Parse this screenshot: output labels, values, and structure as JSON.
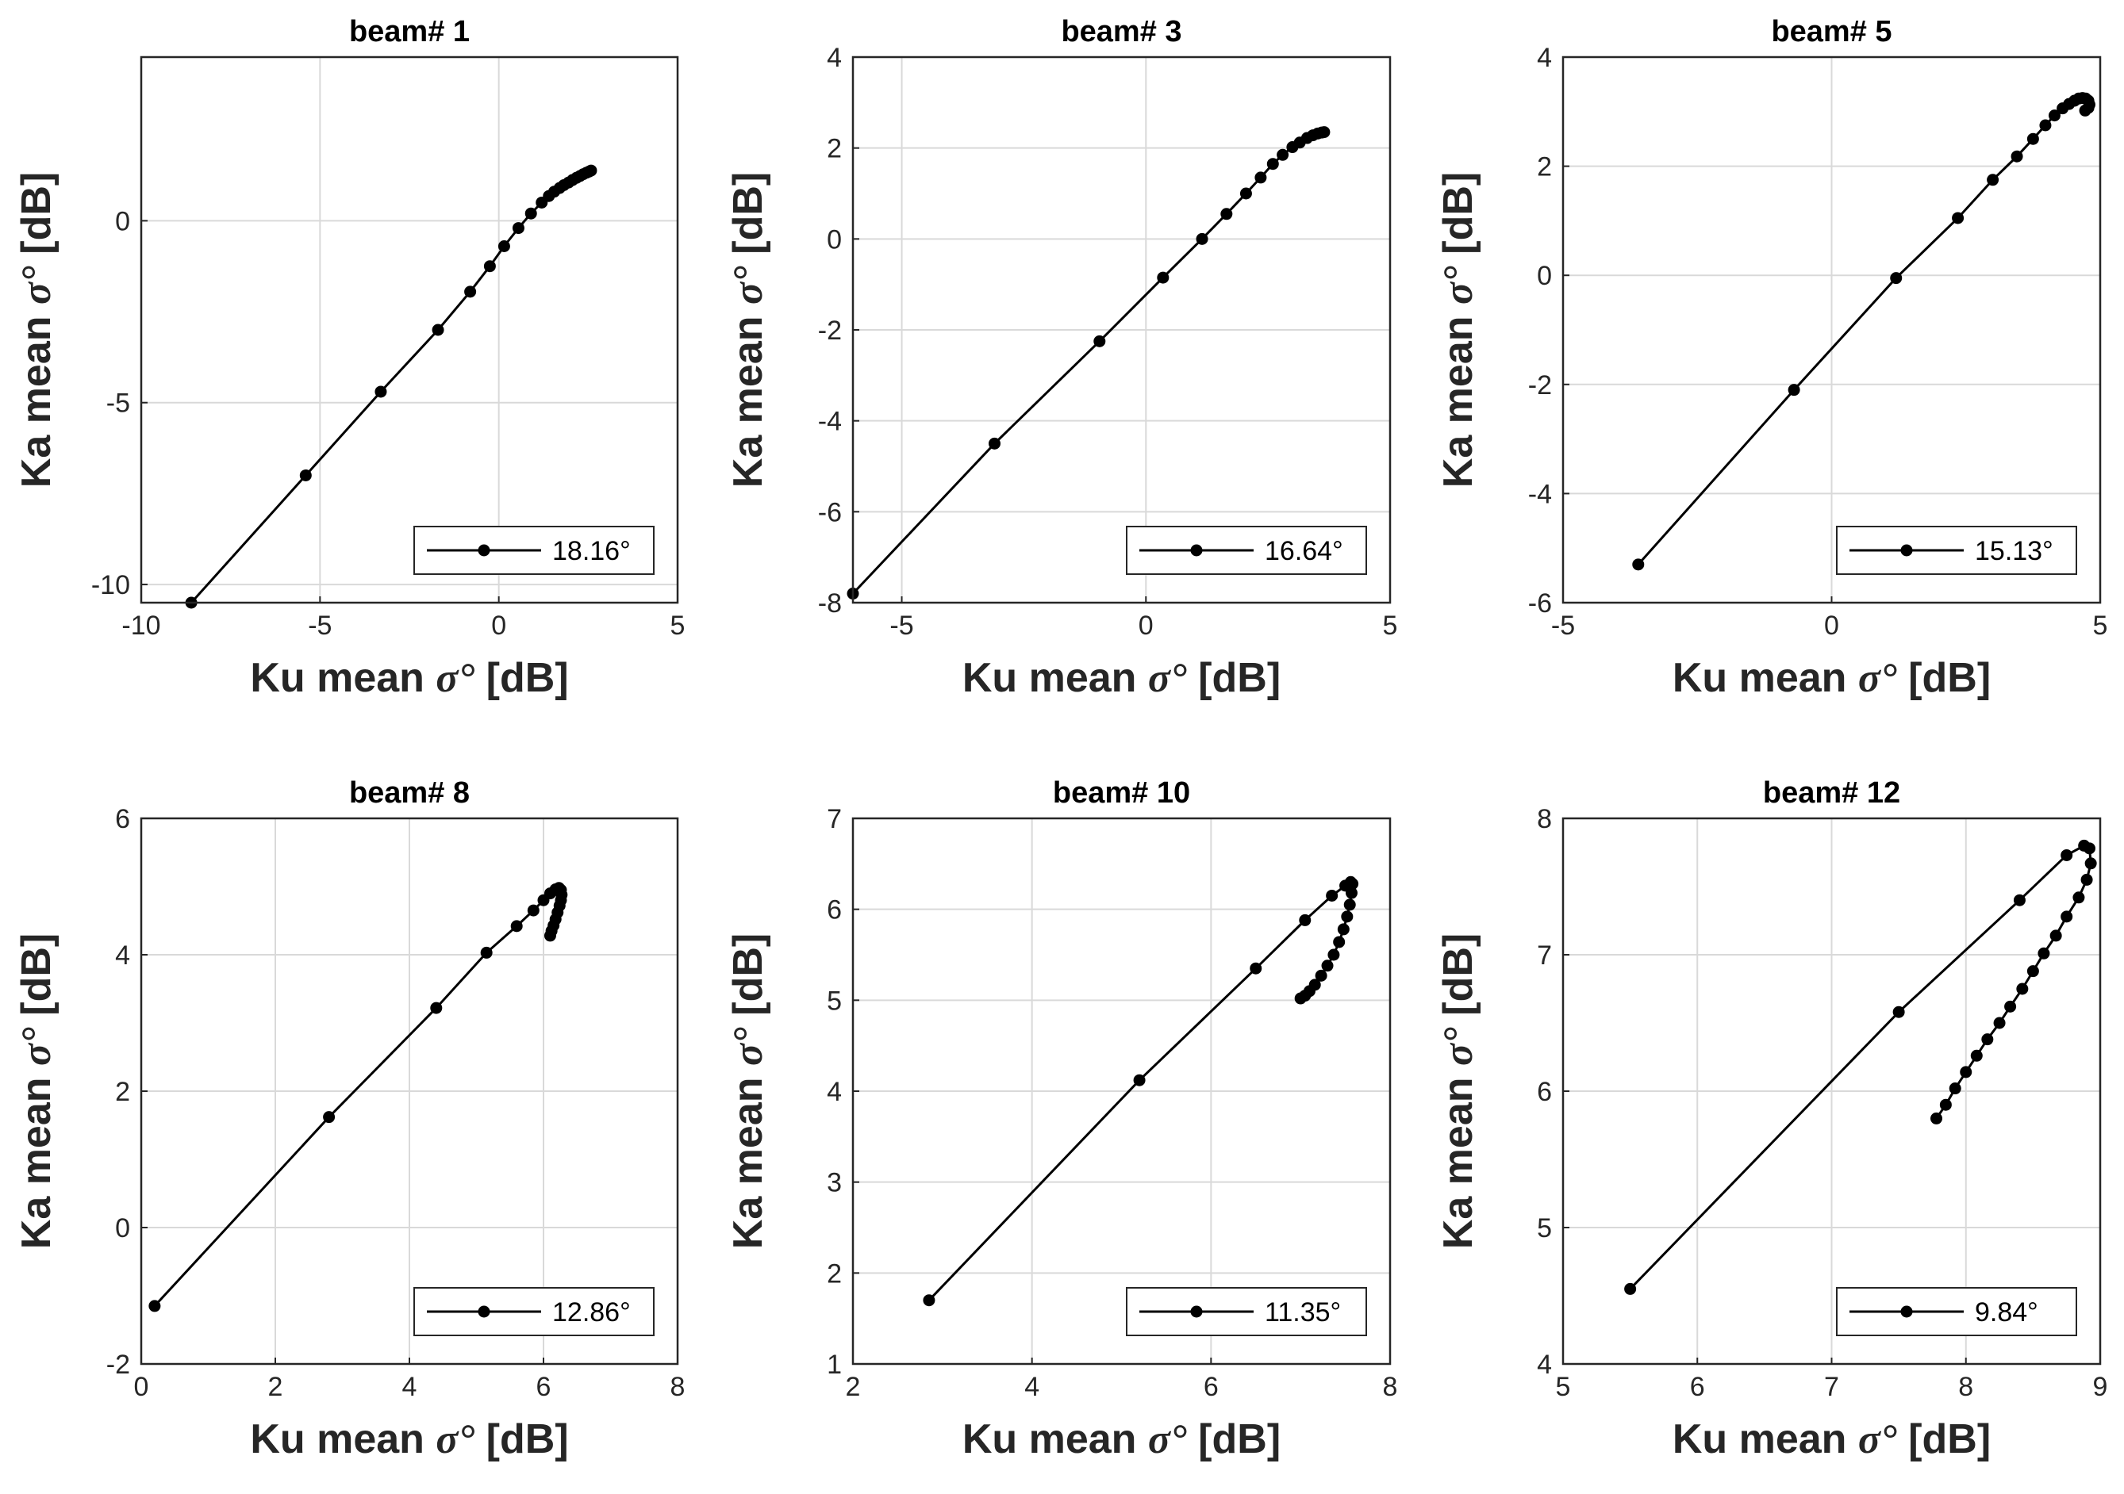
{
  "chart_data": [
    {
      "type": "line",
      "title": "beam# 1",
      "xlabel": "Ku mean",
      "ylabel": "Ka mean",
      "label_symbol": "σ°",
      "label_unit": "[dB]",
      "xlim": [
        -10,
        5
      ],
      "ylim": [
        -10.5,
        4.5
      ],
      "xticks": [
        -10,
        -5,
        0,
        5
      ],
      "yticks": [
        -10,
        -5,
        0
      ],
      "grid": true,
      "legend": "18.16°",
      "legend_position": "bottom-right",
      "series": [
        {
          "name": "18.16°",
          "x": [
            -8.6,
            -5.4,
            -3.3,
            -1.7,
            -0.8,
            -0.25,
            0.15,
            0.55,
            0.9,
            1.2,
            1.4,
            1.55,
            1.7,
            1.82,
            1.95,
            2.06,
            2.17,
            2.27,
            2.36,
            2.45,
            2.52,
            2.58
          ],
          "y": [
            -10.5,
            -7.0,
            -4.7,
            -3.0,
            -1.95,
            -1.25,
            -0.7,
            -0.2,
            0.2,
            0.5,
            0.68,
            0.8,
            0.9,
            0.98,
            1.05,
            1.12,
            1.18,
            1.23,
            1.28,
            1.32,
            1.35,
            1.38
          ]
        }
      ]
    },
    {
      "type": "line",
      "title": "beam# 3",
      "xlabel": "Ku mean",
      "ylabel": "Ka mean",
      "label_symbol": "σ°",
      "label_unit": "[dB]",
      "xlim": [
        -6,
        5
      ],
      "ylim": [
        -8,
        4
      ],
      "xticks": [
        -5,
        0,
        5
      ],
      "yticks": [
        -8,
        -6,
        -4,
        -2,
        0,
        2,
        4
      ],
      "grid": true,
      "legend": "16.64°",
      "legend_position": "bottom-right",
      "series": [
        {
          "name": "16.64°",
          "x": [
            -6.0,
            -3.1,
            -0.95,
            0.35,
            1.15,
            1.65,
            2.05,
            2.35,
            2.6,
            2.8,
            3.0,
            3.15,
            3.3,
            3.42,
            3.52,
            3.6,
            3.65
          ],
          "y": [
            -7.8,
            -4.5,
            -2.25,
            -0.85,
            0.0,
            0.55,
            1.0,
            1.35,
            1.65,
            1.85,
            2.02,
            2.12,
            2.22,
            2.28,
            2.32,
            2.34,
            2.35
          ]
        }
      ]
    },
    {
      "type": "line",
      "title": "beam# 5",
      "xlabel": "Ku mean",
      "ylabel": "Ka mean",
      "label_symbol": "σ°",
      "label_unit": "[dB]",
      "xlim": [
        -5,
        5
      ],
      "ylim": [
        -6,
        4
      ],
      "xticks": [
        -5,
        0,
        5
      ],
      "yticks": [
        -6,
        -4,
        -2,
        0,
        2,
        4
      ],
      "grid": true,
      "legend": "15.13°",
      "legend_position": "bottom-right",
      "series": [
        {
          "name": "15.13°",
          "x": [
            -3.6,
            -0.7,
            1.2,
            2.35,
            3.0,
            3.45,
            3.75,
            3.98,
            4.15,
            4.3,
            4.42,
            4.52,
            4.6,
            4.67,
            4.73,
            4.78,
            4.8,
            4.78,
            4.72
          ],
          "y": [
            -5.3,
            -2.1,
            -0.05,
            1.05,
            1.75,
            2.18,
            2.5,
            2.75,
            2.93,
            3.06,
            3.14,
            3.2,
            3.24,
            3.25,
            3.24,
            3.2,
            3.13,
            3.07,
            3.02
          ]
        }
      ]
    },
    {
      "type": "line",
      "title": "beam# 8",
      "xlabel": "Ku mean",
      "ylabel": "Ka mean",
      "label_symbol": "σ°",
      "label_unit": "[dB]",
      "xlim": [
        0,
        8
      ],
      "ylim": [
        -2,
        6
      ],
      "xticks": [
        0,
        2,
        4,
        6,
        8
      ],
      "yticks": [
        -2,
        0,
        2,
        4,
        6
      ],
      "grid": true,
      "legend": "12.86°",
      "legend_position": "bottom-right",
      "series": [
        {
          "name": "12.86°",
          "x": [
            0.2,
            2.8,
            4.4,
            5.15,
            5.6,
            5.85,
            6.0,
            6.1,
            6.18,
            6.23,
            6.26,
            6.27,
            6.26,
            6.24,
            6.21,
            6.18,
            6.15,
            6.12,
            6.1
          ],
          "y": [
            -1.15,
            1.62,
            3.22,
            4.03,
            4.42,
            4.65,
            4.8,
            4.9,
            4.96,
            4.98,
            4.95,
            4.88,
            4.8,
            4.72,
            4.62,
            4.52,
            4.43,
            4.35,
            4.28
          ]
        }
      ]
    },
    {
      "type": "line",
      "title": "beam# 10",
      "xlabel": "Ku mean",
      "ylabel": "Ka mean",
      "label_symbol": "σ°",
      "label_unit": "[dB]",
      "xlim": [
        2,
        8
      ],
      "ylim": [
        1,
        7
      ],
      "xticks": [
        2,
        4,
        6,
        8
      ],
      "yticks": [
        1,
        2,
        3,
        4,
        5,
        6,
        7
      ],
      "grid": true,
      "legend": "11.35°",
      "legend_position": "bottom-right",
      "series": [
        {
          "name": "11.35°",
          "x": [
            2.85,
            5.2,
            6.5,
            7.05,
            7.35,
            7.5,
            7.56,
            7.58,
            7.57,
            7.55,
            7.52,
            7.48,
            7.43,
            7.37,
            7.3,
            7.23,
            7.16,
            7.1,
            7.05,
            7.0
          ],
          "y": [
            1.7,
            4.12,
            5.35,
            5.88,
            6.15,
            6.26,
            6.3,
            6.28,
            6.18,
            6.05,
            5.92,
            5.78,
            5.64,
            5.5,
            5.38,
            5.27,
            5.17,
            5.1,
            5.05,
            5.02
          ]
        }
      ]
    },
    {
      "type": "line",
      "title": "beam# 12",
      "xlabel": "Ku mean",
      "ylabel": "Ka mean",
      "label_symbol": "σ°",
      "label_unit": "[dB]",
      "xlim": [
        5,
        9
      ],
      "ylim": [
        4,
        8
      ],
      "xticks": [
        5,
        6,
        7,
        8,
        9
      ],
      "yticks": [
        4,
        5,
        6,
        7,
        8
      ],
      "grid": true,
      "legend": "9.84°",
      "legend_position": "bottom-right",
      "series": [
        {
          "name": "9.84°",
          "x": [
            5.5,
            7.5,
            8.4,
            8.75,
            8.88,
            8.92,
            8.93,
            8.9,
            8.84,
            8.75,
            8.67,
            8.58,
            8.5,
            8.42,
            8.33,
            8.25,
            8.16,
            8.08,
            8.0,
            7.92,
            7.85,
            7.78
          ],
          "y": [
            4.55,
            6.58,
            7.4,
            7.73,
            7.8,
            7.78,
            7.67,
            7.55,
            7.42,
            7.28,
            7.14,
            7.01,
            6.88,
            6.75,
            6.62,
            6.5,
            6.38,
            6.26,
            6.14,
            6.02,
            5.9,
            5.8
          ]
        }
      ]
    }
  ]
}
